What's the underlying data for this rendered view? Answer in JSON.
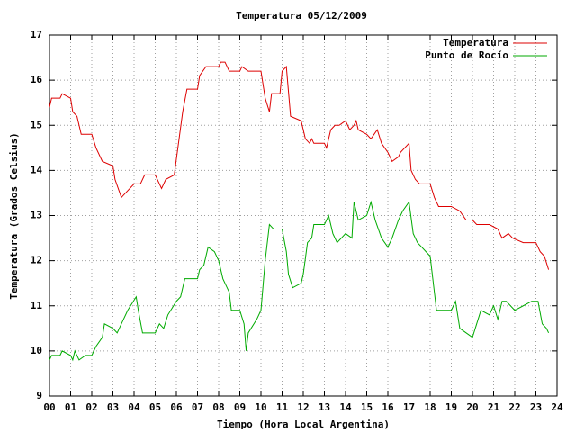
{
  "chart_data": {
    "type": "line",
    "title": "Temperatura 05/12/2009",
    "x_label": "Tiempo (Hora Local Argentina)",
    "y_label": "Temperatura (Grados Celsius)",
    "xlim": [
      0,
      24
    ],
    "ylim": [
      9,
      17
    ],
    "xticks": [
      {
        "value": 0,
        "label": "00"
      },
      {
        "value": 1,
        "label": "01"
      },
      {
        "value": 2,
        "label": "02"
      },
      {
        "value": 3,
        "label": "03"
      },
      {
        "value": 4,
        "label": "04"
      },
      {
        "value": 5,
        "label": "05"
      },
      {
        "value": 6,
        "label": "06"
      },
      {
        "value": 7,
        "label": "07"
      },
      {
        "value": 8,
        "label": "08"
      },
      {
        "value": 9,
        "label": "09"
      },
      {
        "value": 10,
        "label": "10"
      },
      {
        "value": 11,
        "label": "11"
      },
      {
        "value": 12,
        "label": "12"
      },
      {
        "value": 13,
        "label": "13"
      },
      {
        "value": 14,
        "label": "14"
      },
      {
        "value": 15,
        "label": "15"
      },
      {
        "value": 16,
        "label": "16"
      },
      {
        "value": 17,
        "label": "17"
      },
      {
        "value": 18,
        "label": "18"
      },
      {
        "value": 19,
        "label": "19"
      },
      {
        "value": 20,
        "label": "20"
      },
      {
        "value": 21,
        "label": "21"
      },
      {
        "value": 22,
        "label": "22"
      },
      {
        "value": 23,
        "label": "23"
      },
      {
        "value": 24,
        "label": "24"
      }
    ],
    "yticks": [
      9,
      10,
      11,
      12,
      13,
      14,
      15,
      16,
      17
    ],
    "grid": true,
    "legend": "top-right",
    "series": [
      {
        "name": "Temperatura",
        "color": "#dd0000",
        "x": [
          0,
          0.1,
          0.5,
          0.6,
          1.0,
          1.1,
          1.3,
          1.5,
          2.0,
          2.2,
          2.5,
          3.0,
          3.1,
          3.4,
          3.6,
          4.0,
          4.3,
          4.5,
          5.0,
          5.2,
          5.3,
          5.5,
          5.9,
          6.1,
          6.3,
          6.5,
          7.0,
          7.1,
          7.4,
          8.0,
          8.1,
          8.3,
          8.5,
          9.0,
          9.1,
          9.4,
          10.0,
          10.2,
          10.4,
          10.5,
          10.9,
          11.0,
          11.2,
          11.4,
          11.9,
          12.1,
          12.3,
          12.4,
          12.5,
          13.0,
          13.1,
          13.3,
          13.5,
          13.7,
          14.0,
          14.2,
          14.4,
          14.5,
          14.6,
          15.0,
          15.2,
          15.5,
          15.7,
          16.0,
          16.2,
          16.5,
          16.6,
          17.0,
          17.1,
          17.3,
          17.5,
          18.0,
          18.2,
          18.4,
          19.0,
          19.4,
          19.7,
          20.0,
          20.2,
          20.8,
          21.2,
          21.4,
          21.7,
          21.9,
          22.4,
          22.6,
          23.0,
          23.2,
          23.4,
          23.6
        ],
        "values": [
          15.4,
          15.6,
          15.6,
          15.7,
          15.6,
          15.3,
          15.2,
          14.8,
          14.8,
          14.5,
          14.2,
          14.1,
          13.8,
          13.4,
          13.5,
          13.7,
          13.7,
          13.9,
          13.9,
          13.7,
          13.6,
          13.8,
          13.9,
          14.6,
          15.3,
          15.8,
          15.8,
          16.1,
          16.3,
          16.3,
          16.4,
          16.4,
          16.2,
          16.2,
          16.3,
          16.2,
          16.2,
          15.6,
          15.3,
          15.7,
          15.7,
          16.2,
          16.3,
          15.2,
          15.1,
          14.7,
          14.6,
          14.7,
          14.6,
          14.6,
          14.5,
          14.9,
          15.0,
          15.0,
          15.1,
          14.9,
          15.0,
          15.1,
          14.9,
          14.8,
          14.7,
          14.9,
          14.6,
          14.4,
          14.2,
          14.3,
          14.4,
          14.6,
          14.0,
          13.8,
          13.7,
          13.7,
          13.4,
          13.2,
          13.2,
          13.1,
          12.9,
          12.9,
          12.8,
          12.8,
          12.7,
          12.5,
          12.6,
          12.5,
          12.4,
          12.4,
          12.4,
          12.2,
          12.1,
          11.8
        ]
      },
      {
        "name": "Punto de Rocío",
        "color": "#00aa00",
        "x": [
          0,
          0.1,
          0.5,
          0.6,
          1.0,
          1.1,
          1.2,
          1.4,
          1.7,
          2.0,
          2.2,
          2.5,
          2.6,
          3.0,
          3.2,
          3.4,
          3.7,
          4.1,
          4.2,
          4.4,
          5.0,
          5.2,
          5.4,
          5.6,
          6.0,
          6.2,
          6.4,
          7.0,
          7.1,
          7.3,
          7.5,
          7.8,
          8.0,
          8.2,
          8.5,
          8.6,
          9.0,
          9.2,
          9.3,
          9.4,
          9.8,
          10.0,
          10.2,
          10.4,
          10.6,
          11.0,
          11.2,
          11.3,
          11.5,
          11.9,
          12.0,
          12.2,
          12.4,
          12.5,
          13.0,
          13.2,
          13.4,
          13.6,
          14.0,
          14.3,
          14.4,
          14.6,
          15.0,
          15.2,
          15.4,
          15.7,
          16.0,
          16.2,
          16.5,
          16.7,
          17.0,
          17.2,
          17.4,
          17.6,
          17.8,
          18.0,
          18.3,
          19.0,
          19.2,
          19.4,
          19.7,
          20.0,
          20.2,
          20.4,
          20.8,
          21.0,
          21.2,
          21.4,
          21.6,
          22.0,
          22.4,
          22.8,
          23.1,
          23.3,
          23.5,
          23.6
        ],
        "values": [
          9.8,
          9.9,
          9.9,
          10.0,
          9.9,
          9.8,
          10.0,
          9.8,
          9.9,
          9.9,
          10.1,
          10.3,
          10.6,
          10.5,
          10.4,
          10.6,
          10.9,
          11.2,
          10.9,
          10.4,
          10.4,
          10.6,
          10.5,
          10.8,
          11.1,
          11.2,
          11.6,
          11.6,
          11.8,
          11.9,
          12.3,
          12.2,
          12.0,
          11.6,
          11.3,
          10.9,
          10.9,
          10.6,
          10.0,
          10.4,
          10.7,
          10.9,
          12.0,
          12.8,
          12.7,
          12.7,
          12.2,
          11.7,
          11.4,
          11.5,
          11.7,
          12.4,
          12.5,
          12.8,
          12.8,
          13.0,
          12.6,
          12.4,
          12.6,
          12.5,
          13.3,
          12.9,
          13.0,
          13.3,
          12.9,
          12.5,
          12.3,
          12.5,
          12.9,
          13.1,
          13.3,
          12.6,
          12.4,
          12.3,
          12.2,
          12.1,
          10.9,
          10.9,
          11.1,
          10.5,
          10.4,
          10.3,
          10.6,
          10.9,
          10.8,
          11.0,
          10.7,
          11.1,
          11.1,
          10.9,
          11.0,
          11.1,
          11.1,
          10.6,
          10.5,
          10.4
        ]
      }
    ]
  }
}
